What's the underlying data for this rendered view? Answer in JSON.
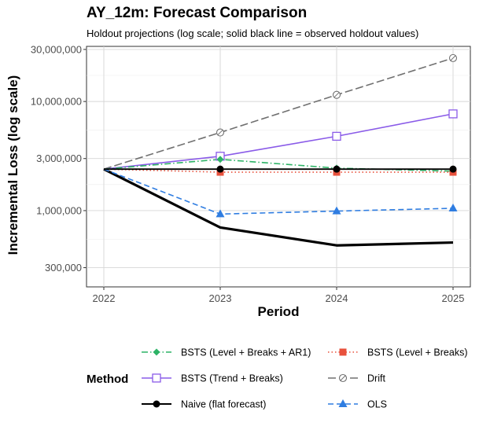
{
  "chart_data": {
    "type": "line",
    "title": "AY_12m: Forecast Comparison",
    "subtitle": "Holdout projections (log scale; solid black line = observed holdout values)",
    "xlabel": "Period",
    "ylabel": "Incremental Loss (log scale)",
    "x": [
      2022,
      2023,
      2024,
      2025
    ],
    "x_tick_labels": [
      "2022",
      "2023",
      "2024",
      "2025"
    ],
    "y_scale": "log",
    "ylim": [
      200000,
      32000000
    ],
    "y_ticks": [
      300000,
      1000000,
      3000000,
      10000000,
      30000000
    ],
    "y_tick_labels": [
      "300,000",
      "1,000,000",
      "3,000,000",
      "10,000,000",
      "30,000,000"
    ],
    "grid": true,
    "legend_title": "Method",
    "legend_position": "bottom",
    "observed": {
      "values": [
        2400000,
        700000,
        480000,
        510000
      ],
      "color": "#000000"
    },
    "series": [
      {
        "name": "BSTS (Level + Breaks + AR1)",
        "values": [
          2400000,
          2950000,
          2450000,
          2300000
        ],
        "color": "#2db366",
        "dash": "dashdot",
        "marker": "diamond"
      },
      {
        "name": "BSTS (Level + Breaks)",
        "values": [
          2400000,
          2250000,
          2250000,
          2250000
        ],
        "color": "#e8513c",
        "dash": "dotted",
        "marker": "square-filled"
      },
      {
        "name": "BSTS (Trend + Breaks)",
        "values": [
          2400000,
          3150000,
          4800000,
          7700000
        ],
        "color": "#8a5be8",
        "dash": "solid",
        "marker": "square-open"
      },
      {
        "name": "Drift",
        "values": [
          2400000,
          5200000,
          11500000,
          25000000
        ],
        "color": "#707070",
        "dash": "longdash",
        "marker": "circle-open"
      },
      {
        "name": "Naive (flat forecast)",
        "values": [
          2400000,
          2400000,
          2400000,
          2400000
        ],
        "color": "#000000",
        "dash": "solid",
        "marker": "circle-filled"
      },
      {
        "name": "OLS",
        "values": [
          2400000,
          930000,
          990000,
          1050000
        ],
        "color": "#2f7de1",
        "dash": "dashed",
        "marker": "triangle"
      }
    ]
  }
}
